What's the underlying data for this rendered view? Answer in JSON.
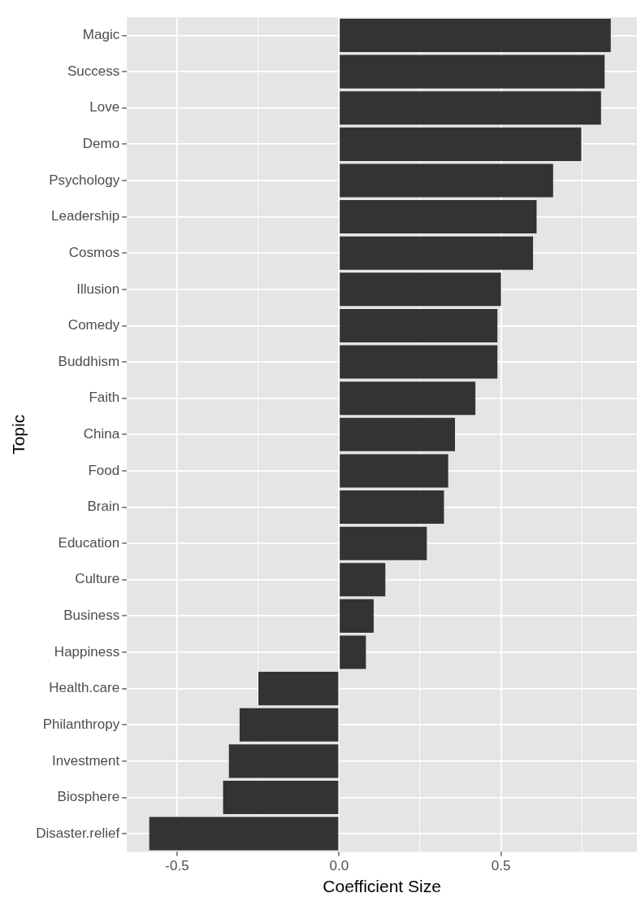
{
  "chart_data": {
    "type": "bar",
    "orientation": "horizontal",
    "xlabel": "Coefficient Size",
    "ylabel": "Topic",
    "categories": [
      "Magic",
      "Success",
      "Love",
      "Demo",
      "Psychology",
      "Leadership",
      "Cosmos",
      "Illusion",
      "Comedy",
      "Buddhism",
      "Faith",
      "China",
      "Food",
      "Brain",
      "Education",
      "Culture",
      "Business",
      "Happiness",
      "Health.care",
      "Philanthropy",
      "Investment",
      "Biosphere",
      "Disaster.relief"
    ],
    "values": [
      0.839,
      0.82,
      0.809,
      0.748,
      0.661,
      0.61,
      0.599,
      0.5,
      0.489,
      0.489,
      0.421,
      0.358,
      0.337,
      0.324,
      0.271,
      0.143,
      0.107,
      0.083,
      -0.249,
      -0.307,
      -0.34,
      -0.358,
      -0.586
    ],
    "color": "#333333",
    "xlim": [
      -0.655,
      0.92
    ],
    "xticks": [
      -0.5,
      {
        "value": -0.25,
        "label": null
      },
      {
        "value": 0,
        "label": "0.0"
      },
      {
        "value": 0.25,
        "label": null
      },
      0.5,
      {
        "value": 0.75,
        "label": null
      }
    ],
    "grid": true
  }
}
